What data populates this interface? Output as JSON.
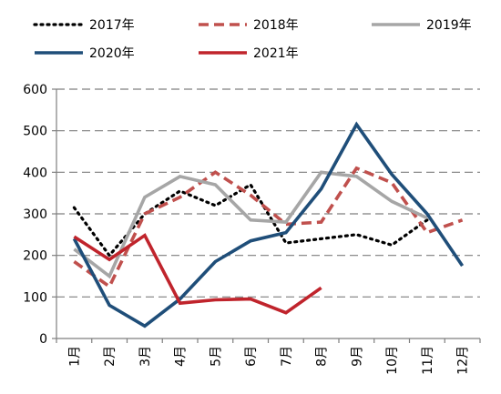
{
  "chart_data": {
    "type": "line",
    "title": "",
    "xlabel": "",
    "ylabel": "",
    "ylim": [
      0,
      600
    ],
    "yticks": [
      0,
      100,
      200,
      300,
      400,
      500,
      600
    ],
    "grid": true,
    "legend_placement": "top",
    "categories": [
      "1月",
      "2月",
      "3月",
      "4月",
      "5月",
      "6月",
      "7月",
      "8月",
      "9月",
      "10月",
      "11月",
      "12月"
    ],
    "series": [
      {
        "name": "2017年",
        "color": "#000000",
        "style": "dotted",
        "values": [
          315,
          200,
          300,
          355,
          320,
          370,
          230,
          240,
          250,
          225,
          285,
          null
        ]
      },
      {
        "name": "2018年",
        "color": "#c0504d",
        "style": "dashed",
        "values": [
          185,
          125,
          300,
          340,
          400,
          345,
          275,
          280,
          410,
          375,
          255,
          285
        ]
      },
      {
        "name": "2019年",
        "color": "#a6a6a6",
        "style": "solid",
        "values": [
          215,
          150,
          340,
          390,
          370,
          285,
          280,
          400,
          390,
          330,
          290,
          null
        ]
      },
      {
        "name": "2020年",
        "color": "#1f4e79",
        "style": "solid",
        "values": [
          240,
          80,
          30,
          95,
          185,
          235,
          255,
          360,
          515,
          395,
          300,
          175
        ]
      },
      {
        "name": "2021年",
        "color": "#c0242c",
        "style": "solid",
        "values": [
          245,
          190,
          248,
          85,
          93,
          95,
          62,
          122,
          null,
          null,
          null,
          null
        ]
      }
    ]
  }
}
